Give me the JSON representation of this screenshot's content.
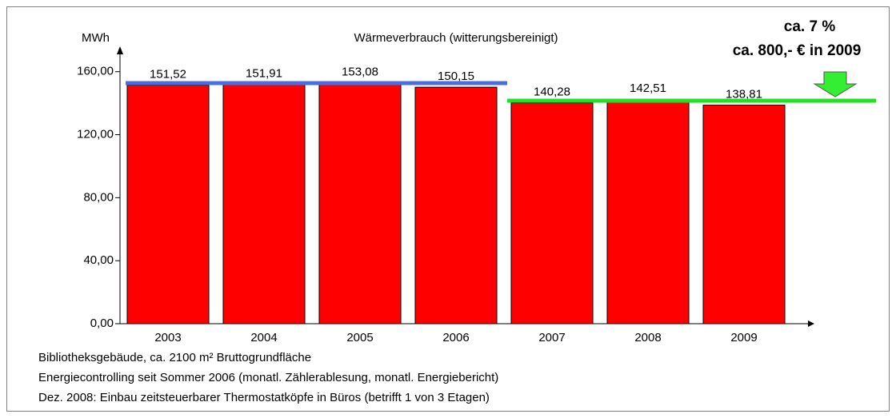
{
  "chart_data": {
    "type": "bar",
    "title": "Wärmeverbrauch (witterungsbereinigt)",
    "y_label": "MWh",
    "categories": [
      "2003",
      "2004",
      "2005",
      "2006",
      "2007",
      "2008",
      "2009"
    ],
    "values": [
      151.52,
      151.91,
      153.08,
      150.15,
      140.28,
      142.51,
      138.81
    ],
    "value_labels": [
      "151,52",
      "151,91",
      "153,08",
      "150,15",
      "140,28",
      "142,51",
      "138,81"
    ],
    "color": "#ff0000",
    "ylim": [
      0,
      170
    ],
    "yticks": [
      {
        "value": 0,
        "label": "0,00"
      },
      {
        "value": 40,
        "label": "40,00"
      },
      {
        "value": 80,
        "label": "80,00"
      },
      {
        "value": 120,
        "label": "120,00"
      },
      {
        "value": 160,
        "label": "160,00"
      }
    ],
    "annotations": [
      "ca. 7 %",
      "ca. 800,- € in 2009"
    ],
    "notes": [
      "Bibliotheksgebäude, ca. 2100 m² Bruttogrundfläche",
      "Energiecontrolling seit Sommer 2006 (monatl. Zählerablesung, monatl. Energiebericht)",
      "Dez. 2008: Einbau zeitsteuerbarer Thermostatköpfe in Büros (betrifft 1 von 3 Etagen)"
    ]
  }
}
